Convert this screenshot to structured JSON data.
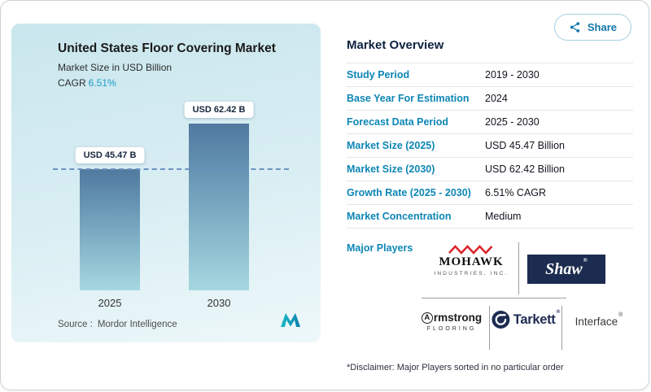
{
  "colors": {
    "accent_teal": "#0d86b5",
    "cagr_teal": "#1b9bc7",
    "heading_navy": "#0d2240",
    "panel_gradient_top": "#c9e6ed",
    "panel_gradient_bottom": "#eef8fa",
    "bar_gradient_top": "#50799f",
    "bar_gradient_bottom": "#a6d7e0",
    "dashed_line": "#6d92c4",
    "mohawk_red": "#d9262c",
    "shaw_navy": "#1c2b50",
    "tarkett_navy": "#1d2b52"
  },
  "chart_panel": {
    "title": "United States Floor Covering Market",
    "subtitle": "Market Size in USD Billion",
    "cagr_label": "CAGR",
    "cagr_value": "6.51%",
    "source_label": "Source :",
    "source_value": "Mordor Intelligence"
  },
  "chart_data": {
    "type": "bar",
    "title": "United States Floor Covering Market",
    "ylabel": "Market Size in USD Billion",
    "xlabel": "",
    "categories": [
      "2025",
      "2030"
    ],
    "values": [
      45.47,
      62.42
    ],
    "value_labels": [
      "USD 45.47 B",
      "USD 62.42 B"
    ],
    "unit": "USD Billion",
    "cagr": "6.51%",
    "reference_line_at": 45.47,
    "grid": false,
    "legend": false,
    "ylim": [
      0,
      65
    ]
  },
  "share_button": {
    "label": "Share"
  },
  "overview": {
    "title": "Market Overview",
    "rows": [
      {
        "label": "Study Period",
        "value": "2019 - 2030"
      },
      {
        "label": "Base Year For Estimation",
        "value": "2024"
      },
      {
        "label": "Forecast Data Period",
        "value": "2025 - 2030"
      },
      {
        "label": "Market Size (2025)",
        "value": "USD 45.47 Billion"
      },
      {
        "label": "Market Size (2030)",
        "value": "USD 62.42 Billion"
      },
      {
        "label": "Growth Rate (2025 - 2030)",
        "value": "6.51% CAGR"
      },
      {
        "label": "Market Concentration",
        "value": "Medium"
      }
    ],
    "major_players_label": "Major Players",
    "disclaimer": "*Disclaimer: Major Players sorted in no particular order"
  },
  "players": {
    "mohawk": {
      "name": "MOHAWK",
      "sub": "INDUSTRIES, INC."
    },
    "shaw": {
      "name": "Shaw",
      "reg": "®"
    },
    "armstrong": {
      "initial": "A",
      "rest": "rmstrong",
      "sub": "FLOORING"
    },
    "tarkett": {
      "name": "Tarkett",
      "reg": "®"
    },
    "interface": {
      "name": "Interface",
      "reg": "®"
    }
  },
  "icons": {
    "share": "share-icon",
    "mordor_logo": "mordor-intelligence-logo",
    "mohawk_zigzag": "mohawk-zigzag-icon",
    "tarkett_circle": "tarkett-circle-icon",
    "armstrong_circle_a": "armstrong-circle-a-icon"
  }
}
